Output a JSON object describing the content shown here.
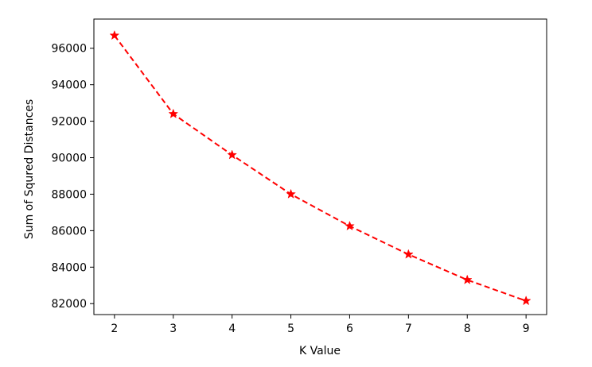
{
  "chart_data": {
    "type": "line",
    "title": "",
    "xlabel": "K Value",
    "ylabel": "Sum of Squred Distances",
    "x": [
      2,
      3,
      4,
      5,
      6,
      7,
      8,
      9
    ],
    "series": [
      {
        "values": [
          96700,
          92400,
          90150,
          88000,
          86250,
          84700,
          83300,
          82150
        ],
        "color": "#ff0000",
        "line_style": "dashed",
        "marker": "star"
      }
    ],
    "xlim": [
      1.65,
      9.35
    ],
    "ylim": [
      81400,
      97600
    ],
    "xticks": [
      2,
      3,
      4,
      5,
      6,
      7,
      8,
      9
    ],
    "yticks": [
      82000,
      84000,
      86000,
      88000,
      90000,
      92000,
      94000,
      96000
    ],
    "grid": false,
    "legend": "none"
  }
}
